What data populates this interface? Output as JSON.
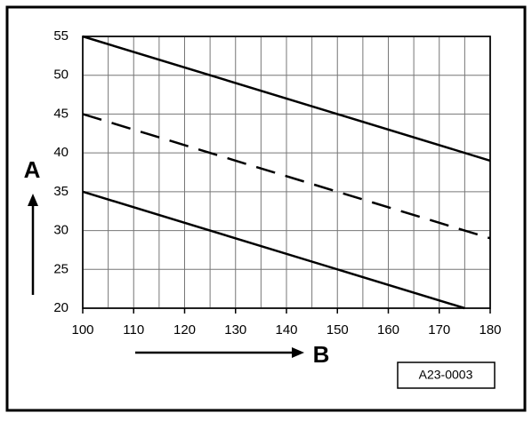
{
  "chart_data": {
    "type": "line",
    "xlabel": "B",
    "ylabel": "A",
    "annotation": "A23-0003",
    "xlim": [
      100,
      180
    ],
    "ylim": [
      20,
      55
    ],
    "xticks": [
      100,
      110,
      120,
      130,
      140,
      150,
      160,
      170,
      180
    ],
    "yticks": [
      20,
      25,
      30,
      35,
      40,
      45,
      50,
      55
    ],
    "xgrid": [
      100,
      105,
      110,
      115,
      120,
      125,
      130,
      135,
      140,
      145,
      150,
      155,
      160,
      165,
      170,
      175,
      180
    ],
    "grid": true,
    "series": [
      {
        "color": "#000000",
        "style": "solid",
        "x": [
          100,
          180
        ],
        "values": [
          55,
          39
        ]
      },
      {
        "color": "#000000",
        "style": "dashed",
        "x": [
          100,
          180
        ],
        "values": [
          45,
          29
        ]
      },
      {
        "color": "#000000",
        "style": "solid",
        "x": [
          100,
          175
        ],
        "values": [
          35,
          20
        ]
      }
    ]
  }
}
